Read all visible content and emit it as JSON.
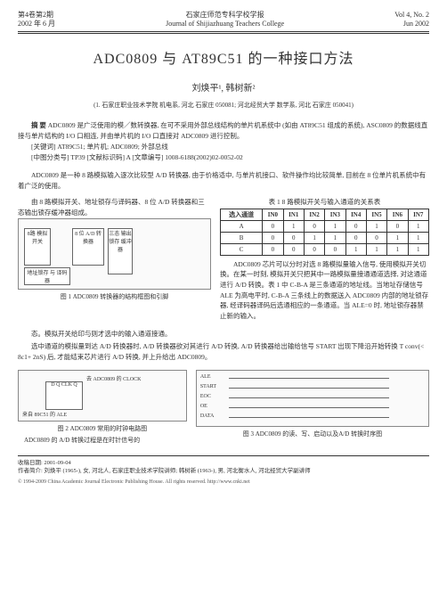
{
  "header": {
    "left_line1": "第4卷第2期",
    "left_line2": "2002 年 6 月",
    "center_line1": "石家庄师范专科学校学报",
    "center_line2": "Journal of Shijiazhuang Teachers College",
    "right_line1": "Vol 4, No. 2",
    "right_line2": "Jun 2002"
  },
  "title": "ADC0809 与 AT89C51 的一种接口方法",
  "authors": "刘焕平¹, 韩树新²",
  "affiliation": "(1. 石家庄职业技术学院 机电系, 河北 石家庄  050081; 河北经贸大学 数学系, 河北 石家庄  050041)",
  "abstract_label": "摘   要",
  "abstract": "ADC0809 是广泛使用的模／数转换器, 在可不采用外部总线结构的单片机系统中 (如由 AT89C51 组成的系统), ASC0809 的数据线直接与单片结构的 I/O 口相连, 并由单片机的 I/O 口直接对 ADC0809 进行控制。",
  "keywords_label": "关键词",
  "keywords": "AT89C51; 单片机; ADC0809; 外部总线",
  "classline": "[中图分类号] TP39      [文献标识码] A      [文章编号] 1008-6188(2002)02-0052-02",
  "intro": "ADC0809 是一种 8 路模拟输入逐次比较型 A/D 转换器, 由于价格适中, 与单片机接口、软件操作均比较简单, 目前在 8 位单片机系统中有着广泛的使用。",
  "left_intro": "由 8 路模拟开关、地址锁存与译码器、8 位 A/D 转换器和三态输出锁存缓冲器组成。",
  "table1_caption": "表 1  8 路模拟开关与输入通道的关系表",
  "table1": {
    "headers": [
      "选入通道",
      "IN0",
      "IN1",
      "IN2",
      "IN3",
      "IN4",
      "IN5",
      "IN6",
      "IN7"
    ],
    "rows": [
      [
        "A",
        "0",
        "1",
        "0",
        "1",
        "0",
        "1",
        "0",
        "1"
      ],
      [
        "B",
        "0",
        "0",
        "1",
        "1",
        "0",
        "0",
        "1",
        "1"
      ],
      [
        "C",
        "0",
        "0",
        "0",
        "0",
        "1",
        "1",
        "1",
        "1"
      ]
    ]
  },
  "fig1_caption": "图 1  ADC0809 转换器的结构框图和引脚",
  "para_right": "ADC0809 芯片可以分时对选 8 路模拟量输入信号, 使用模拟开关切换。在某一时刻, 模拟开关只把其中一路模拟量接通通道选择, 对这通道进行 A/D 转换。表 1 中 C-B-A 是三条通道的地址线。当地址存储信号 ALE 为高电平时, C-B-A 三条线上的数据送入 ADC0809 内部的地址锁存器, 经译码器译码后选通相应的一条通道。当 ALE=0 时, 地址锁存器禁止新的输入。",
  "mid_para": "态。模拟开关给印与则才选中的输入通道接通。",
  "mid_para2": "选中通道的模拟量到达 A/D 转换器时, A/D 转换器欲对其进行 A/D 转换, A/D 转换器给出输给信号 START 出现下降沿开始转换 T conv(< 8c1+ 2nS) 后, 才能结束芯片进行 A/D 转换, 并上升给出 ADC0809。",
  "fig2_caption": "图 2  ADC0809 常用的时钟电路图",
  "fig2_sub": "ADC0809 的 A/D 转换过程是在时针信号的",
  "fig3_caption": "图 3  ADC0809 的读、写、启动以及A/D 转换时序图",
  "timing_labels": [
    "ALE",
    "START",
    "EOC",
    "OE",
    "DATA"
  ],
  "diag_labels": {
    "mux": "8路\n模拟\n开关",
    "latch": "地址锁存\n与\n译码器",
    "adc": "8 位\nA/D\n转换器",
    "tri": "三态\n输出\n锁存\n缓冲器"
  },
  "clock_diag": {
    "dff": "D  Q\nCLK\n   Q̄",
    "out": "去 ADC0809 的 CLOCK",
    "in": "来自 89C51 的\nALE"
  },
  "footer": {
    "recv": "收稿日期: 2001-09-04",
    "auth": "作者简介: 刘焕平 (1965-), 女, 河北人, 石家庄职业技术学院讲师; 韩树新 (1963-), 男, 河北衡水人, 河北经贸大学副讲师"
  },
  "copyright": "© 1994-2009 China Academic Journal Electronic Publishing House. All rights reserved.   http://www.cnki.net"
}
